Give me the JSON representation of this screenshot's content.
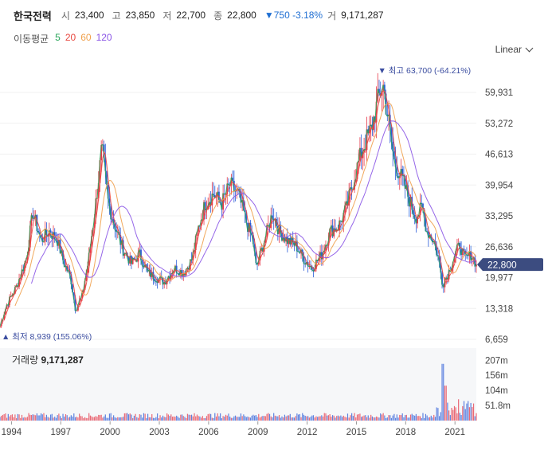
{
  "header": {
    "name": "한국전력",
    "open_label": "시",
    "open": "23,400",
    "high_label": "고",
    "high": "23,850",
    "low_label": "저",
    "low": "22,700",
    "close_label": "종",
    "close": "22,800",
    "change": "▼750 -3.18%",
    "volume_label": "거",
    "volume": "9,171,287"
  },
  "ma_legend": {
    "label": "이동평균",
    "periods": [
      "5",
      "20",
      "60",
      "120"
    ],
    "colors": [
      "#2aa55a",
      "#e8473f",
      "#f0a04b",
      "#8a55e6"
    ]
  },
  "scale_button": "Linear",
  "colors": {
    "up": "#e6394a",
    "down": "#2a5bd7",
    "price_tag": "#3c4c80"
  },
  "volume_panel": {
    "label": "거래량",
    "value": "9,171,287"
  },
  "chart_data": {
    "type": "candlestick",
    "x_ticks": [
      "1994",
      "1997",
      "2000",
      "2003",
      "2006",
      "2009",
      "2012",
      "2015",
      "2018",
      "2021"
    ],
    "y_ticks": [
      "59,931",
      "53,272",
      "46,613",
      "39,954",
      "33,295",
      "26,636",
      "19,977",
      "13,318",
      "6,659"
    ],
    "ylim": [
      6659,
      65000
    ],
    "x_range_years": [
      1993.3,
      2022.3
    ],
    "current_price": 22800,
    "current_price_label": "22,800",
    "max_annotation": {
      "label": "최고",
      "value": "63,700",
      "pct": "(-64.21%)",
      "year": 2016.6,
      "price": 63700
    },
    "min_annotation": {
      "label": "최저",
      "value": "8,939",
      "pct": "(155.06%)",
      "year": 1993.4,
      "price": 8939
    },
    "price_anchors": [
      [
        1993.3,
        9500
      ],
      [
        1993.7,
        14000
      ],
      [
        1994.3,
        18000
      ],
      [
        1994.9,
        24000
      ],
      [
        1995.3,
        34000
      ],
      [
        1995.8,
        28000
      ],
      [
        1996.3,
        30000
      ],
      [
        1996.8,
        28000
      ],
      [
        1997.2,
        23000
      ],
      [
        1997.6,
        20000
      ],
      [
        1997.9,
        13000
      ],
      [
        1998.3,
        16000
      ],
      [
        1998.7,
        24000
      ],
      [
        1999.2,
        38000
      ],
      [
        1999.5,
        48000
      ],
      [
        1999.9,
        36000
      ],
      [
        2000.4,
        30000
      ],
      [
        2000.8,
        26000
      ],
      [
        2001.3,
        23000
      ],
      [
        2001.8,
        25000
      ],
      [
        2002.3,
        21000
      ],
      [
        2002.8,
        20000
      ],
      [
        2003.3,
        19000
      ],
      [
        2003.9,
        22000
      ],
      [
        2004.5,
        21000
      ],
      [
        2005.0,
        24000
      ],
      [
        2005.4,
        31000
      ],
      [
        2005.8,
        36000
      ],
      [
        2006.3,
        38000
      ],
      [
        2006.8,
        36000
      ],
      [
        2007.3,
        40000
      ],
      [
        2007.8,
        38000
      ],
      [
        2008.3,
        32000
      ],
      [
        2008.7,
        28000
      ],
      [
        2008.9,
        22000
      ],
      [
        2009.4,
        28000
      ],
      [
        2009.9,
        34000
      ],
      [
        2010.3,
        30000
      ],
      [
        2010.8,
        28000
      ],
      [
        2011.3,
        27000
      ],
      [
        2011.8,
        24000
      ],
      [
        2012.3,
        22000
      ],
      [
        2012.9,
        25000
      ],
      [
        2013.4,
        30000
      ],
      [
        2013.9,
        31000
      ],
      [
        2014.4,
        35000
      ],
      [
        2014.9,
        42000
      ],
      [
        2015.4,
        48000
      ],
      [
        2015.9,
        52000
      ],
      [
        2016.3,
        58000
      ],
      [
        2016.6,
        62000
      ],
      [
        2016.9,
        55000
      ],
      [
        2017.3,
        45000
      ],
      [
        2017.8,
        41000
      ],
      [
        2018.2,
        37000
      ],
      [
        2018.6,
        33000
      ],
      [
        2019.0,
        35000
      ],
      [
        2019.3,
        30000
      ],
      [
        2019.7,
        28000
      ],
      [
        2020.0,
        24000
      ],
      [
        2020.25,
        18500
      ],
      [
        2020.6,
        21000
      ],
      [
        2021.0,
        25000
      ],
      [
        2021.3,
        27000
      ],
      [
        2021.6,
        24000
      ],
      [
        2022.0,
        25000
      ],
      [
        2022.3,
        22800
      ]
    ],
    "moving_averages": [
      {
        "name": "5",
        "color": "#2aa55a"
      },
      {
        "name": "20",
        "color": "#e8473f"
      },
      {
        "name": "60",
        "color": "#f0a04b"
      },
      {
        "name": "120",
        "color": "#8a55e6"
      }
    ],
    "volume_ticks": [
      "207m",
      "156m",
      "104m",
      "51.8m"
    ],
    "volume_ylim": [
      0,
      230
    ]
  }
}
